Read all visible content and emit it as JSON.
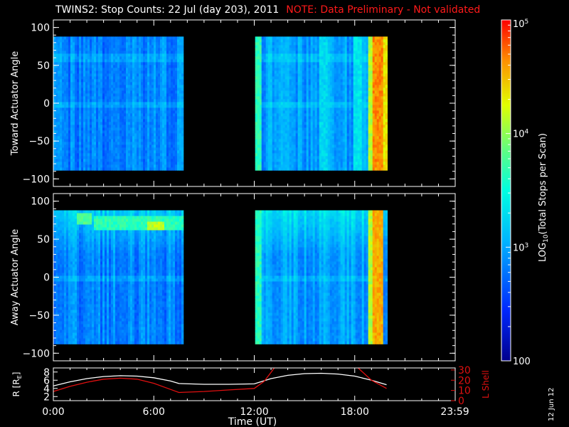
{
  "header": {
    "title": "TWINS2: Stop Counts: 22 Jul (day 203), 2011",
    "note": "NOTE: Data Preliminary - Not validated"
  },
  "footer": {
    "date_stamp": "12 Jun 12"
  },
  "colors": {
    "note": "#ff1a1a",
    "r_line": "#ffffff",
    "lshell_line": "#e01010",
    "background": "#000000"
  },
  "chart_data": [
    {
      "type": "heatmap",
      "ylabel": "Toward Actuator Angle",
      "ylim": [
        -110,
        110
      ],
      "yticks": [
        "100",
        "50",
        "0",
        "-50",
        "-100"
      ],
      "xlim_hours": [
        0,
        24
      ],
      "data_segments_hours": [
        [
          0.0,
          7.7
        ],
        [
          12.05,
          19.9
        ]
      ],
      "angle_range": [
        -88,
        88
      ],
      "features": [
        {
          "time": [
            12.05,
            12.4
          ],
          "level": 0.55
        },
        {
          "time": [
            15.8,
            16.3
          ],
          "level": 0.42
        },
        {
          "time": [
            17.8,
            18.3
          ],
          "level": 0.45
        },
        {
          "time": [
            18.7,
            19.0
          ],
          "level": 0.7
        },
        {
          "time": [
            19.0,
            19.6
          ],
          "level": 0.88
        },
        {
          "time": [
            19.6,
            19.9
          ],
          "level": 0.78
        }
      ]
    },
    {
      "type": "heatmap",
      "ylabel": "Away Actuator Angle",
      "ylim": [
        -110,
        110
      ],
      "yticks": [
        "100",
        "50",
        "0",
        "-50",
        "-100"
      ],
      "xlim_hours": [
        0,
        24
      ],
      "data_segments_hours": [
        [
          0.0,
          7.7
        ],
        [
          12.05,
          19.9
        ]
      ],
      "angle_range": [
        -88,
        88
      ],
      "features": [
        {
          "time": [
            1.3,
            2.2
          ],
          "angle": [
            70,
            85
          ],
          "level": 0.6
        },
        {
          "time": [
            2.3,
            7.7
          ],
          "angle": [
            64,
            84
          ],
          "level": 0.55
        },
        {
          "time": [
            5.6,
            6.6
          ],
          "angle": [
            64,
            76
          ],
          "level": 0.72
        },
        {
          "time": [
            12.05,
            12.4
          ],
          "level": 0.55
        },
        {
          "time": [
            18.7,
            19.0
          ],
          "level": 0.7
        },
        {
          "time": [
            19.0,
            19.6
          ],
          "level": 0.85
        }
      ]
    },
    {
      "type": "line",
      "xlabel": "Time (UT)",
      "xticks": [
        "0:00",
        "6:00",
        "12:00",
        "18:00",
        "23:59"
      ],
      "xtick_hours": [
        0,
        6,
        12,
        18,
        23.98
      ],
      "ylabel": "R [R",
      "ylabel_sub": "E",
      "ylabel_end": "]",
      "ylim": [
        1,
        9
      ],
      "yticks": [
        "8",
        "6",
        "4",
        "2"
      ],
      "y2label": "L Shell",
      "y2lim": [
        0,
        32
      ],
      "y2ticks": [
        "30",
        "20",
        "10",
        "0"
      ],
      "series": [
        {
          "axis": "left",
          "x": [
            0,
            1,
            2,
            3,
            4,
            5,
            6,
            7,
            7.5,
            9,
            10.5,
            12,
            13,
            14,
            15,
            16,
            17,
            18,
            19,
            19.9
          ],
          "y": [
            4.6,
            5.6,
            6.4,
            6.9,
            7.1,
            7.0,
            6.6,
            5.8,
            5.2,
            5.0,
            5.0,
            5.1,
            6.4,
            7.2,
            7.6,
            7.7,
            7.5,
            7.0,
            6.0,
            4.9
          ]
        },
        {
          "axis": "right",
          "x": [
            0,
            1,
            2,
            3,
            4,
            5,
            6,
            7,
            7.5,
            9,
            10.5,
            12,
            12.6,
            13.2
          ],
          "y": [
            9,
            14,
            18,
            21,
            22,
            21,
            17,
            11,
            8,
            9,
            10.5,
            12,
            19,
            32
          ]
        },
        {
          "axis": "right",
          "x": [
            18.2,
            19.0,
            19.9
          ],
          "y": [
            32,
            20,
            12
          ]
        }
      ]
    }
  ],
  "colorbar": {
    "label_prefix": "LOG",
    "label_sub": "10",
    "label_suffix": "(Total Stops per Scan)",
    "tick_labels": [
      {
        "base": "10",
        "exp": "5",
        "value": 100000
      },
      {
        "base": "10",
        "exp": "4",
        "value": 10000
      },
      {
        "base": "10",
        "exp": "3",
        "value": 1000
      },
      {
        "base": "100",
        "exp": "",
        "value": 100
      }
    ]
  }
}
